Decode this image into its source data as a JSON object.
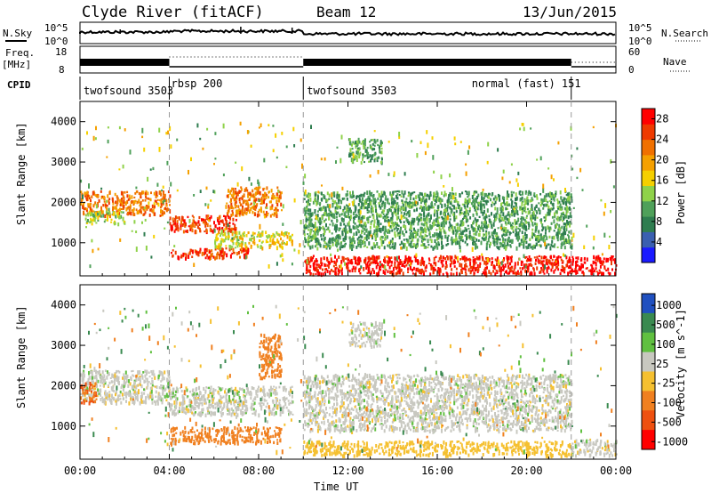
{
  "header": {
    "station": "Clyde River (fitACF)",
    "beam": "Beam 12",
    "date": "13/Jun/2015"
  },
  "strip_labels": {
    "nsky": "N.Sky",
    "nsky_top": "10^5",
    "nsky_bottom": "10^0",
    "nsearch": "N.Search",
    "nsearch_top": "10^5",
    "nsearch_bottom": "10^0",
    "freq": "Freq.",
    "freq_unit": "[MHz]",
    "freq_top": "18",
    "freq_bottom": "8",
    "nave": "Nave",
    "nave_top": "60",
    "nave_bottom": "0",
    "cpid": "CPID"
  },
  "cpid_segments": [
    {
      "label": "twofsound 3503",
      "start_hour": 0,
      "end_hour": 4
    },
    {
      "label": "rbsp 200",
      "start_hour": 4,
      "end_hour": 10
    },
    {
      "label": "twofsound 3503",
      "start_hour": 10,
      "end_hour": 22
    },
    {
      "label": "normal (fast) 151",
      "start_hour": 22,
      "end_hour": 24
    }
  ],
  "colors": {
    "power_scale": [
      "#1a1aff",
      "#3a5fb0",
      "#2e7d4f",
      "#4fa05a",
      "#8fd24a",
      "#f5d000",
      "#f5a000",
      "#f07000",
      "#ee3a00",
      "#ff0000"
    ],
    "velocity_scale": [
      "#2050c0",
      "#3a8a50",
      "#60c040",
      "#c8c8c0",
      "#f5c030",
      "#f08020",
      "#ee5010",
      "#ff0000"
    ]
  },
  "chart_data": [
    {
      "type": "heatmap",
      "title": "",
      "ylabel": "Slant Range [km]",
      "xlabel": "",
      "x_ticks": [
        "00:00",
        "04:00",
        "08:00",
        "12:00",
        "16:00",
        "20:00",
        "00:00"
      ],
      "y_ticks": [
        "1000",
        "2000",
        "3000",
        "4000"
      ],
      "xlim": [
        0,
        24
      ],
      "ylim": [
        180,
        4500
      ],
      "colorbar": {
        "label": "Power [dB]",
        "ticks": [
          "4",
          "8",
          "12",
          "16",
          "20",
          "24",
          "28"
        ],
        "range": [
          0,
          30
        ]
      },
      "bands": [
        {
          "x": [
            0,
            4
          ],
          "y": [
            1700,
            2300
          ],
          "value": 22
        },
        {
          "x": [
            0.2,
            2
          ],
          "y": [
            1500,
            1800
          ],
          "value": 14
        },
        {
          "x": [
            4,
            7
          ],
          "y": [
            1300,
            1700
          ],
          "value": 26
        },
        {
          "x": [
            4,
            7.5
          ],
          "y": [
            650,
            900
          ],
          "value": 25
        },
        {
          "x": [
            6.5,
            9
          ],
          "y": [
            1700,
            2400
          ],
          "value": 22
        },
        {
          "x": [
            6,
            9.5
          ],
          "y": [
            900,
            1300
          ],
          "value": 16
        },
        {
          "x": [
            10,
            21.8
          ],
          "y": [
            250,
            700
          ],
          "value": 28
        },
        {
          "x": [
            10,
            22
          ],
          "y": [
            900,
            2300
          ],
          "value": 10
        },
        {
          "x": [
            12,
            13.5
          ],
          "y": [
            3000,
            3600
          ],
          "value": 10
        },
        {
          "x": [
            21.8,
            24
          ],
          "y": [
            250,
            700
          ],
          "value": 30
        }
      ]
    },
    {
      "type": "heatmap",
      "title": "",
      "ylabel": "Slant Range [km]",
      "xlabel": "Time UT",
      "x_ticks": [
        "00:00",
        "04:00",
        "08:00",
        "12:00",
        "16:00",
        "20:00",
        "00:00"
      ],
      "y_ticks": [
        "1000",
        "2000",
        "3000",
        "4000"
      ],
      "xlim": [
        0,
        24
      ],
      "ylim": [
        180,
        4500
      ],
      "colorbar": {
        "label": "Velocity [m s^-1]",
        "ticks": [
          "1000",
          "500",
          "100",
          "25",
          "-25",
          "-100",
          "-500",
          "-1000"
        ],
        "range": [
          -1000,
          1000
        ]
      },
      "bands": [
        {
          "x": [
            0,
            4
          ],
          "y": [
            1600,
            2400
          ],
          "value": 0
        },
        {
          "x": [
            0,
            0.7
          ],
          "y": [
            1600,
            2100
          ],
          "value": -500
        },
        {
          "x": [
            4,
            9.5
          ],
          "y": [
            1300,
            2000
          ],
          "value": 0
        },
        {
          "x": [
            4,
            9
          ],
          "y": [
            600,
            1000
          ],
          "value": -300
        },
        {
          "x": [
            8,
            9
          ],
          "y": [
            2200,
            3300
          ],
          "value": -150
        },
        {
          "x": [
            10,
            22
          ],
          "y": [
            300,
            650
          ],
          "value": -60
        },
        {
          "x": [
            10,
            22
          ],
          "y": [
            900,
            2300
          ],
          "value": 0
        },
        {
          "x": [
            12,
            13.5
          ],
          "y": [
            3000,
            3600
          ],
          "value": 0
        },
        {
          "x": [
            22,
            24
          ],
          "y": [
            300,
            700
          ],
          "value": 0
        }
      ]
    }
  ]
}
